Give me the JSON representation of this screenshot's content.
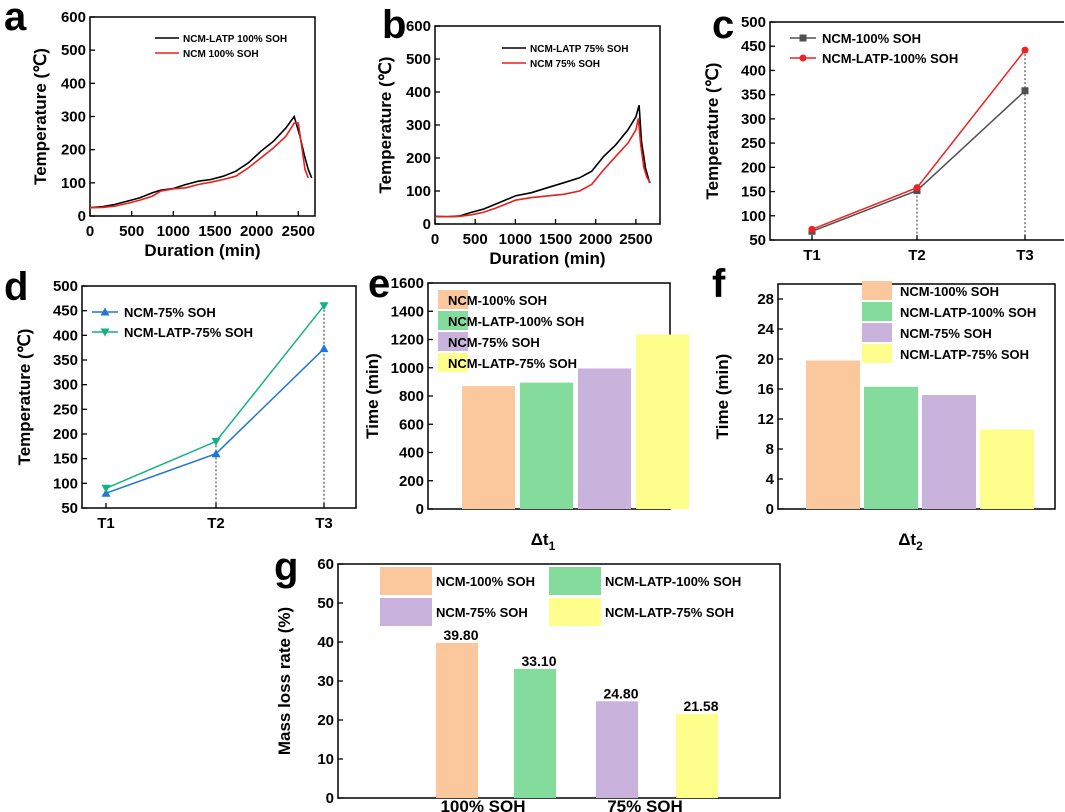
{
  "colors": {
    "black": "#000000",
    "red": "#e8201c",
    "gray": "#505050",
    "red_marker": "#ee2222",
    "blue": "#1f77d4",
    "green": "#14b088",
    "orange_bar": "#fbc79d",
    "green_bar": "#83dc9c",
    "purple_bar": "#c9b3dc",
    "yellow_bar": "#fefe8c"
  },
  "chart_data": [
    {
      "panel": "a",
      "type": "line",
      "title": "",
      "xlabel": "Duration (min)",
      "ylabel": "Temperature (℃)",
      "xlim": [
        0,
        2700
      ],
      "ylim": [
        0,
        600
      ],
      "xticks": [
        0,
        500,
        1000,
        1500,
        2000,
        2500
      ],
      "yticks": [
        0,
        100,
        200,
        300,
        400,
        500,
        600
      ],
      "series": [
        {
          "name": "NCM-LATP 100% SOH",
          "color": "#000000",
          "x": [
            0,
            150,
            300,
            450,
            600,
            750,
            850,
            1000,
            1150,
            1300,
            1450,
            1600,
            1750,
            1900,
            2050,
            2200,
            2350,
            2450,
            2520,
            2570,
            2620,
            2660
          ],
          "y": [
            25,
            28,
            35,
            45,
            55,
            70,
            78,
            83,
            95,
            105,
            110,
            120,
            135,
            160,
            195,
            225,
            265,
            300,
            240,
            185,
            140,
            115
          ]
        },
        {
          "name": "NCM 100% SOH",
          "color": "#e8201c",
          "x": [
            0,
            150,
            300,
            450,
            600,
            750,
            850,
            1000,
            1150,
            1300,
            1450,
            1600,
            1750,
            1900,
            2050,
            2200,
            2350,
            2450,
            2500,
            2540,
            2580,
            2620
          ],
          "y": [
            25,
            26,
            30,
            38,
            48,
            60,
            75,
            82,
            85,
            95,
            102,
            110,
            120,
            145,
            175,
            205,
            240,
            280,
            280,
            210,
            140,
            115
          ]
        }
      ]
    },
    {
      "panel": "b",
      "type": "line",
      "title": "",
      "xlabel": "Duration (min)",
      "ylabel": "Temperature (℃)",
      "xlim": [
        0,
        2800
      ],
      "ylim": [
        0,
        600
      ],
      "xticks": [
        0,
        500,
        1000,
        1500,
        2000,
        2500
      ],
      "yticks": [
        0,
        100,
        200,
        300,
        400,
        500,
        600
      ],
      "series": [
        {
          "name": "NCM-LATP 75% SOH",
          "color": "#000000",
          "x": [
            0,
            150,
            300,
            450,
            600,
            750,
            900,
            1000,
            1200,
            1400,
            1600,
            1800,
            1950,
            2100,
            2250,
            2400,
            2500,
            2540,
            2570,
            2620,
            2670
          ],
          "y": [
            23,
            22,
            24,
            35,
            45,
            60,
            75,
            85,
            95,
            110,
            125,
            140,
            160,
            205,
            240,
            285,
            325,
            360,
            250,
            170,
            125
          ]
        },
        {
          "name": "NCM 75% SOH",
          "color": "#e8201c",
          "x": [
            0,
            150,
            300,
            450,
            600,
            750,
            900,
            1000,
            1200,
            1400,
            1600,
            1800,
            1950,
            2100,
            2250,
            2400,
            2500,
            2530,
            2560,
            2600,
            2640,
            2680
          ],
          "y": [
            22,
            22,
            23,
            28,
            35,
            48,
            62,
            72,
            80,
            85,
            90,
            100,
            120,
            165,
            205,
            245,
            285,
            320,
            240,
            170,
            140,
            125
          ]
        }
      ]
    },
    {
      "panel": "c",
      "type": "line",
      "xlabel": "",
      "ylabel": "Temperature (℃)",
      "categories": [
        "T1",
        "T2",
        "T3"
      ],
      "ylim": [
        50,
        500
      ],
      "yticks": [
        50,
        100,
        150,
        200,
        250,
        300,
        350,
        400,
        450,
        500
      ],
      "series": [
        {
          "name": "NCM-100% SOH",
          "color": "#505050",
          "marker": "square",
          "values": [
            68,
            152,
            358
          ]
        },
        {
          "name": "NCM-LATP-100% SOH",
          "color": "#ee2222",
          "marker": "circle",
          "values": [
            72,
            158,
            442
          ]
        }
      ]
    },
    {
      "panel": "d",
      "type": "line",
      "xlabel": "",
      "ylabel": "Temperature (℃)",
      "categories": [
        "T1",
        "T2",
        "T3"
      ],
      "ylim": [
        50,
        500
      ],
      "yticks": [
        50,
        100,
        150,
        200,
        250,
        300,
        350,
        400,
        450,
        500
      ],
      "series": [
        {
          "name": "NCM-75% SOH",
          "color": "#1f77d4",
          "marker": "triangle-up",
          "values": [
            80,
            160,
            373
          ]
        },
        {
          "name": "NCM-LATP-75% SOH",
          "color": "#14b088",
          "marker": "triangle-down",
          "values": [
            90,
            185,
            460
          ]
        }
      ]
    },
    {
      "panel": "e",
      "type": "bar",
      "xlabel": "Δt",
      "xlabel_sub": "1",
      "ylabel": "Time (min)",
      "ylim": [
        0,
        1600
      ],
      "yticks": [
        0,
        200,
        400,
        600,
        800,
        1000,
        1200,
        1400,
        1600
      ],
      "series": [
        {
          "name": "NCM-100% SOH",
          "color": "#fbc79d",
          "value": 870
        },
        {
          "name": "NCM-LATP-100% SOH",
          "color": "#83dc9c",
          "value": 895
        },
        {
          "name": "NCM-75% SOH",
          "color": "#c9b3dc",
          "value": 995
        },
        {
          "name": "NCM-LATP-75% SOH",
          "color": "#fefe8c",
          "value": 1235
        }
      ]
    },
    {
      "panel": "f",
      "type": "bar",
      "xlabel": "Δt",
      "xlabel_sub": "2",
      "ylabel": "Time (min)",
      "ylim": [
        0,
        30
      ],
      "yticks": [
        0,
        4,
        8,
        12,
        16,
        20,
        24,
        28
      ],
      "series": [
        {
          "name": "NCM-100% SOH",
          "color": "#fbc79d",
          "value": 19.8
        },
        {
          "name": "NCM-LATP-100% SOH",
          "color": "#83dc9c",
          "value": 16.3
        },
        {
          "name": "NCM-75% SOH",
          "color": "#c9b3dc",
          "value": 15.2
        },
        {
          "name": "NCM-LATP-75% SOH",
          "color": "#fefe8c",
          "value": 10.6
        }
      ]
    },
    {
      "panel": "g",
      "type": "bar",
      "xlabel": "",
      "ylabel": "Mass loss rate (%)",
      "ylim": [
        0,
        60
      ],
      "yticks": [
        0,
        10,
        20,
        30,
        40,
        50,
        60
      ],
      "categories": [
        "100% SOH",
        "75% SOH"
      ],
      "series": [
        {
          "name": "NCM-100% SOH",
          "color": "#fbc79d",
          "value": 39.8,
          "label": "39.80",
          "category": 0
        },
        {
          "name": "NCM-LATP-100% SOH",
          "color": "#83dc9c",
          "value": 33.1,
          "label": "33.10",
          "category": 0
        },
        {
          "name": "NCM-75% SOH",
          "color": "#c9b3dc",
          "value": 24.8,
          "label": "24.80",
          "category": 1
        },
        {
          "name": "NCM-LATP-75% SOH",
          "color": "#fefe8c",
          "value": 21.58,
          "label": "21.58",
          "category": 1
        }
      ]
    }
  ]
}
